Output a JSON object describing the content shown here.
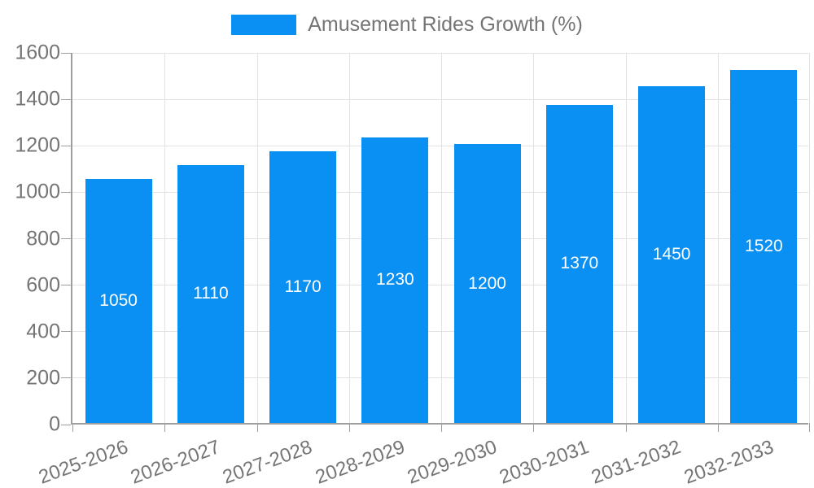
{
  "colors": {
    "bar": "#0a8ff2",
    "axis_text": "#757575",
    "gridline": "#e2e2e2",
    "axis_line": "#9e9e9e",
    "value_label": "#ffffff",
    "background": "#ffffff"
  },
  "chart_data": {
    "type": "bar",
    "title": "Amusement Rides Growth (%)",
    "categories": [
      "2025-2026",
      "2026-2027",
      "2027-2028",
      "2028-2029",
      "2029-2030",
      "2030-2031",
      "2031-2032",
      "2032-2033"
    ],
    "series": [
      {
        "name": "Amusement Rides Growth (%)",
        "values": [
          1050,
          1110,
          1170,
          1230,
          1200,
          1370,
          1450,
          1520
        ]
      }
    ],
    "value_labels_shown": true,
    "xlabel": "",
    "ylabel": "",
    "ylim": [
      0,
      1600
    ],
    "ytick_step": 200,
    "ytick_labels": [
      "0",
      "200",
      "400",
      "600",
      "800",
      "1000",
      "1200",
      "1400",
      "1600"
    ],
    "grid": true,
    "legend_position": "top"
  }
}
